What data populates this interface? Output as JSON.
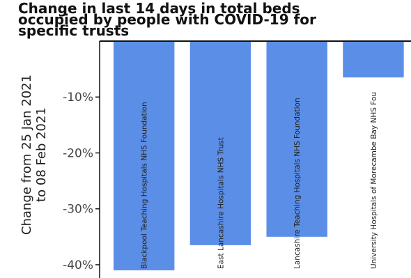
{
  "chart_data": {
    "type": "bar",
    "title": "Change in last 14 days in total beds\noccupied by people with COVID-19 for\nspecific trusts",
    "ylabel": "Change from 25 Jan 2021\nto 08 Feb 2021",
    "categories": [
      "Blackpool Teaching Hospitals NHS Foundation",
      "East Lancashire Hospitals NHS Trust",
      "Lancashire Teaching Hospitals NHS Foundation",
      "University Hospitals of Morecambe Bay NHS Fou"
    ],
    "values": [
      -41.0,
      -36.5,
      -35.0,
      -6.5
    ],
    "ylim": [
      -42,
      0
    ],
    "yticks": [
      -10,
      -20,
      -30,
      -40
    ],
    "ytick_labels": [
      "-10%",
      "-20%",
      "-30%",
      "-40%"
    ],
    "bar_color": "#5b8ee6",
    "grid": false
  }
}
